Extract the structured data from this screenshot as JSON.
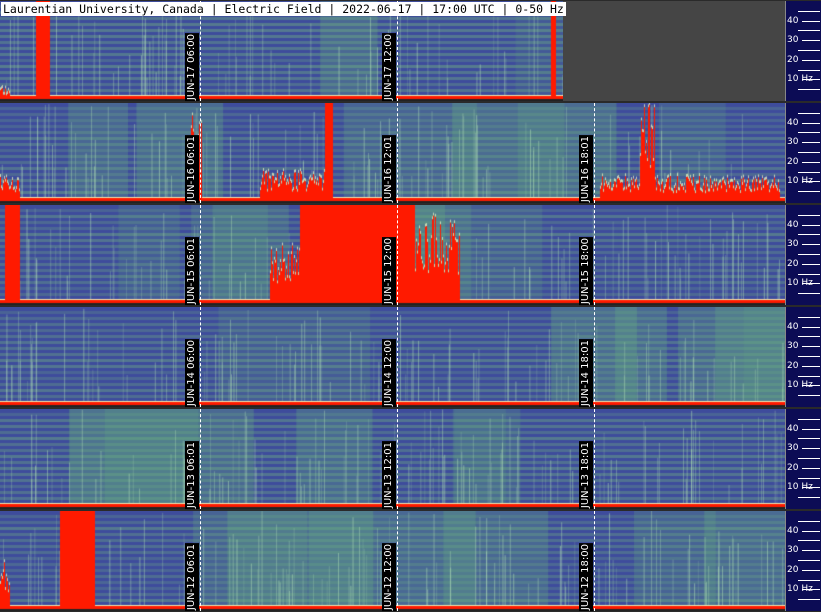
{
  "title": "Laurentian University, Canada | Electric Field | 2022-06-17 | 17:00 UTC | 0-50 Hz",
  "axis": {
    "labels": [
      "40",
      "30",
      "20",
      "10 Hz"
    ],
    "range_hz": [
      0,
      50
    ]
  },
  "colors": {
    "background": "#3c4a98",
    "band": "#6aa882",
    "burst": "#ff1a00",
    "axis": "#0c0c55"
  },
  "panels": [
    {
      "day": "JUN-17",
      "timestamps": [
        "JUN-17 06:00",
        "JUN-17 12:00"
      ],
      "partial": true
    },
    {
      "day": "JUN-16",
      "timestamps": [
        "JUN-16 06:01",
        "JUN-16 12:01",
        "JUN-16 18:01"
      ]
    },
    {
      "day": "JUN-15",
      "timestamps": [
        "JUN-15 06:01",
        "JUN-15 12:00",
        "JUN-15 18:00"
      ]
    },
    {
      "day": "JUN-14",
      "timestamps": [
        "JUN-14 06:00",
        "JUN-14 12:00",
        "JUN-14 18:01"
      ]
    },
    {
      "day": "JUN-13",
      "timestamps": [
        "JUN-13 06:01",
        "JUN-13 12:01",
        "JUN-13 18:01"
      ]
    },
    {
      "day": "JUN-12",
      "timestamps": [
        "JUN-12 06:01",
        "JUN-12 12:00",
        "JUN-12 18:00"
      ]
    }
  ]
}
